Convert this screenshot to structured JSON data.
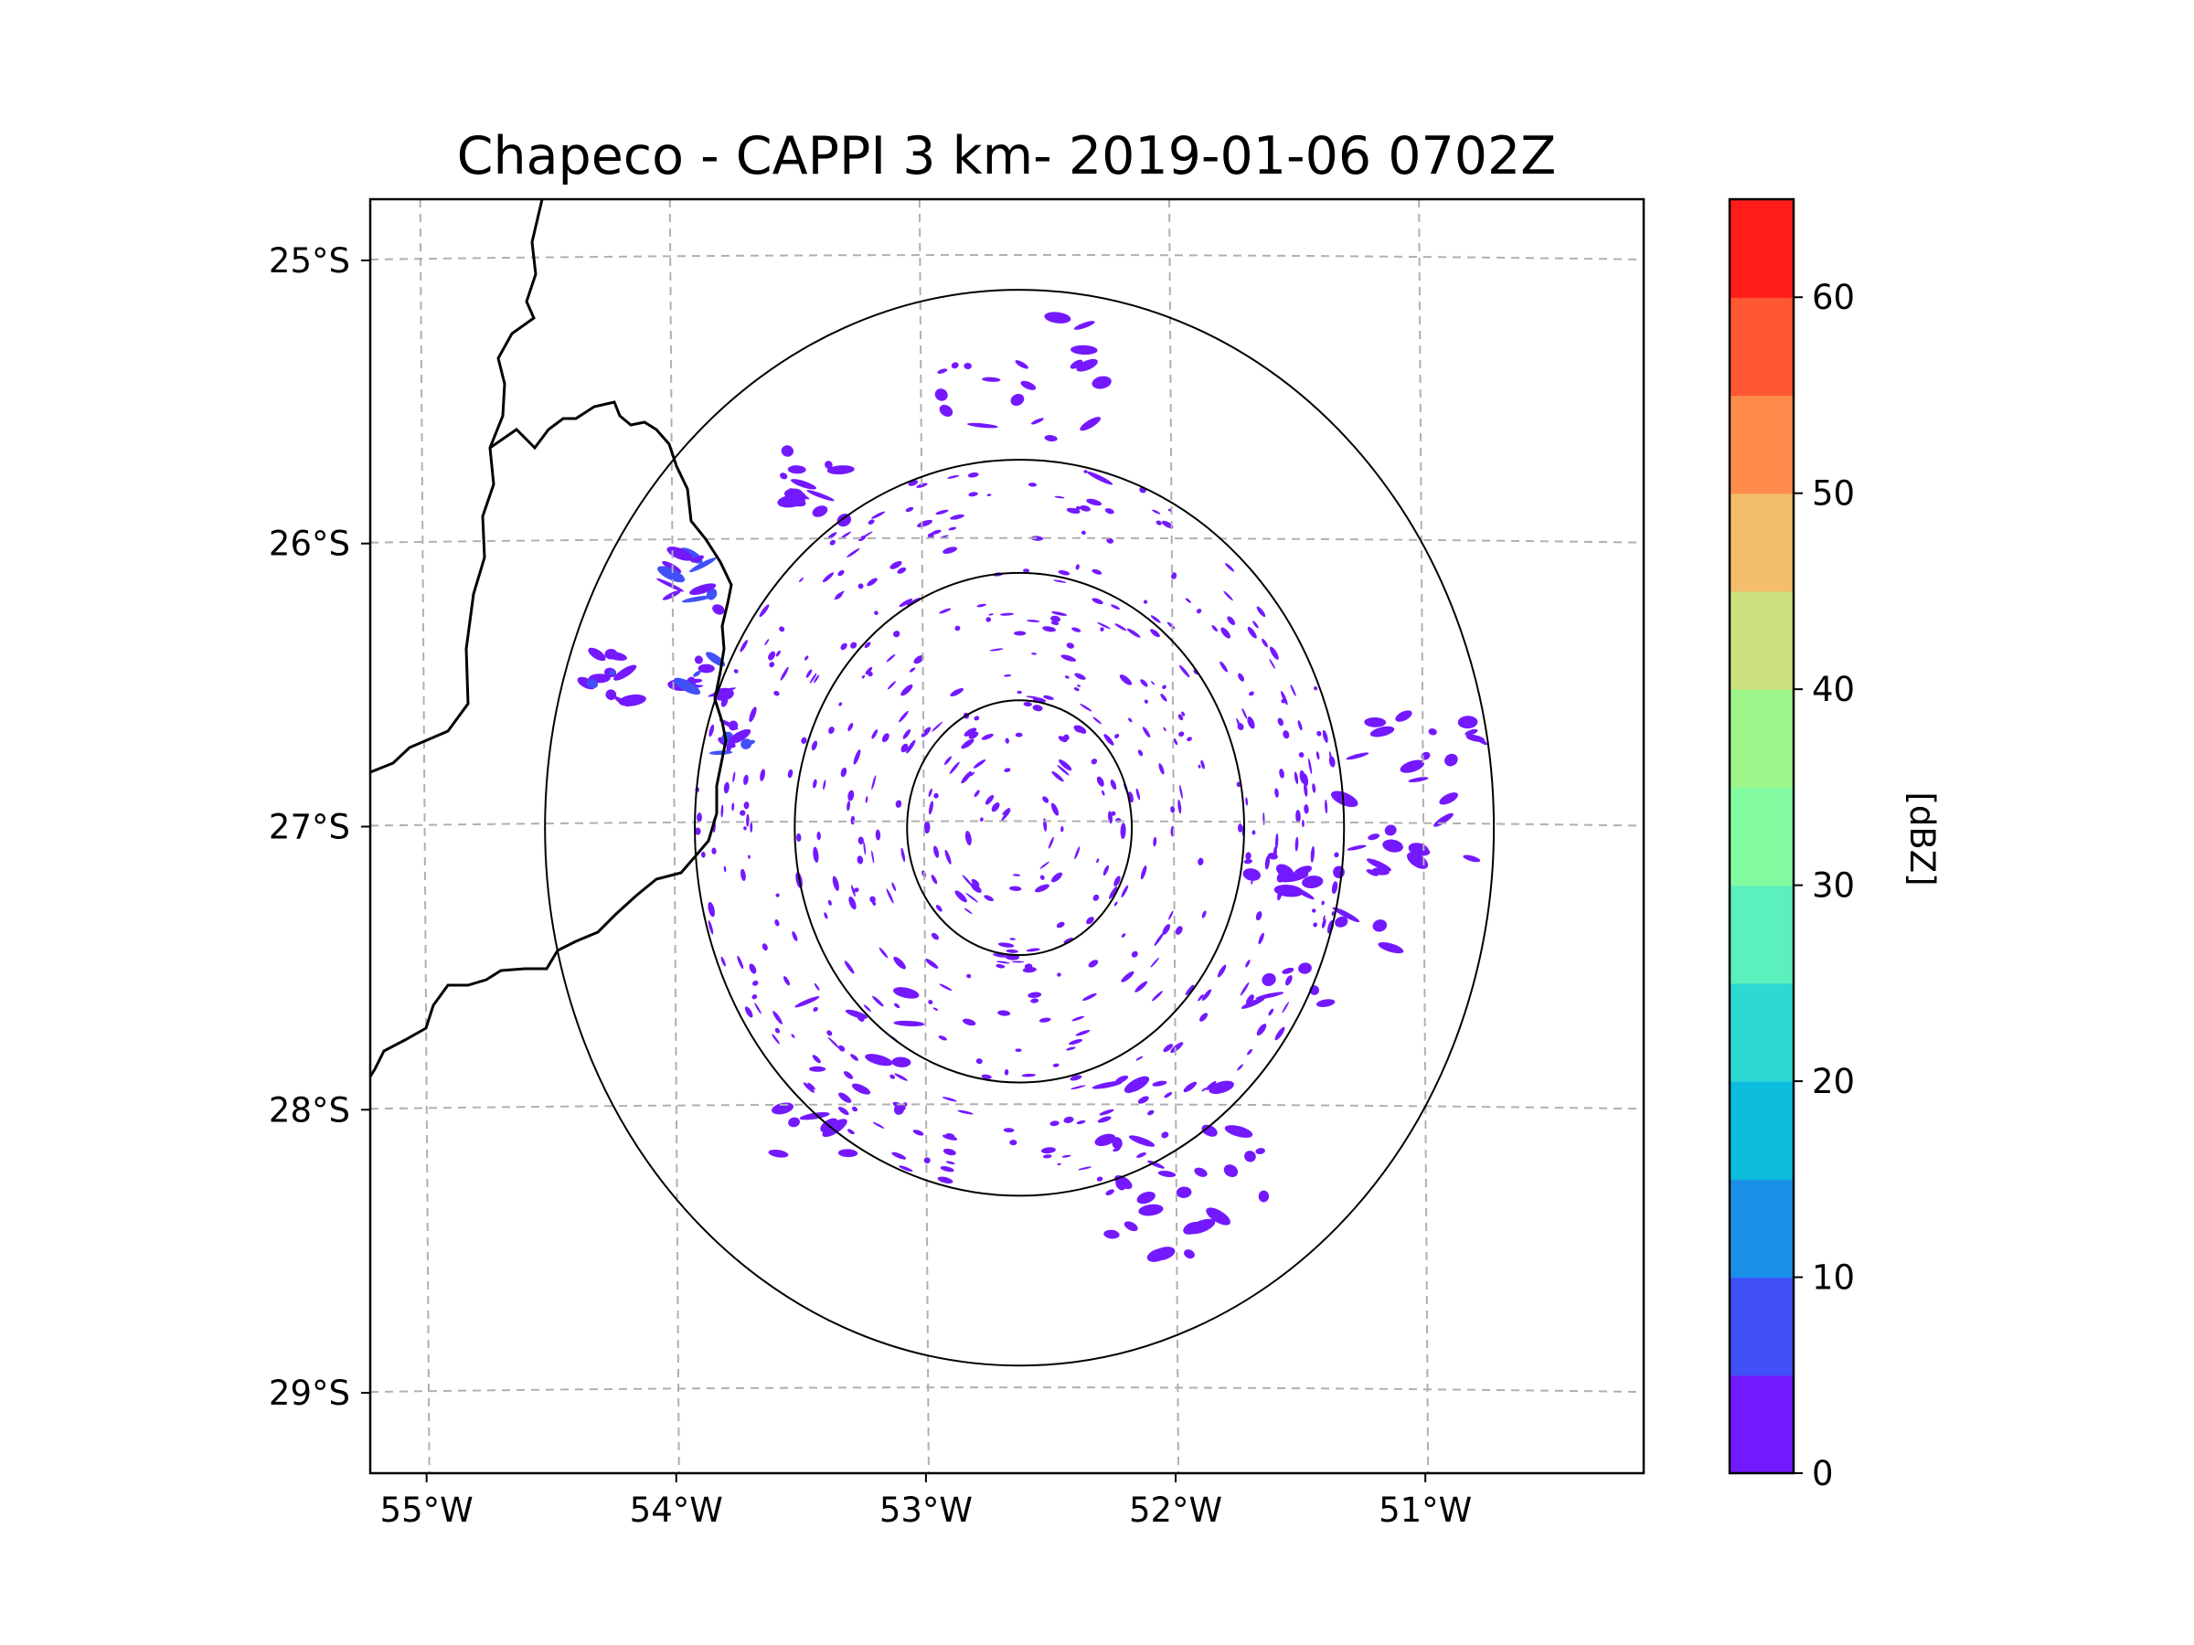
{
  "chart_data": {
    "type": "heatmap",
    "title": "Chapeco - CAPPI 3 km- 2019-01-06 0702Z",
    "map": {
      "lon_range": [
        -55.2,
        -50.1
      ],
      "lat_range": [
        -29.3,
        -24.8
      ],
      "lon_ticks": [
        -55,
        -54,
        -53,
        -52,
        -51
      ],
      "lon_tick_labels": [
        "55°W",
        "54°W",
        "53°W",
        "52°W",
        "51°W"
      ],
      "lat_ticks": [
        -25,
        -26,
        -27,
        -28,
        -29
      ],
      "lat_tick_labels": [
        "25°S",
        "26°S",
        "27°S",
        "28°S",
        "29°S"
      ],
      "gridlines": "dashed grey"
    },
    "radar": {
      "center_lon": -52.6,
      "center_lat": -27.02,
      "range_rings_deg": [
        0.45,
        0.9,
        1.3,
        1.9
      ]
    },
    "colorbar": {
      "label": "[dBZ]",
      "min": 0,
      "max": 65,
      "step": 5,
      "tick_values": [
        0,
        10,
        20,
        30,
        40,
        50,
        60
      ],
      "tick_labels": [
        "0",
        "10",
        "20",
        "30",
        "40",
        "50",
        "60"
      ],
      "colors": [
        "#7419fe",
        "#4051f8",
        "#1a90e8",
        "#0cbddd",
        "#2ed9d3",
        "#5cf0bc",
        "#83fca1",
        "#9ef58a",
        "#cde080",
        "#f3bd6c",
        "#ff8b4d",
        "#ff5732",
        "#ff1d1a"
      ]
    },
    "echo_clusters": [
      {
        "lon": -53.45,
        "lat": -25.8,
        "dbz": 5,
        "n": 14,
        "spread": 0.15
      },
      {
        "lon": -53.9,
        "lat": -26.15,
        "dbz": 6,
        "n": 12,
        "spread": 0.1
      },
      {
        "lon": -54.25,
        "lat": -26.5,
        "dbz": 7,
        "n": 12,
        "spread": 0.1
      },
      {
        "lon": -53.88,
        "lat": -26.5,
        "dbz": 8,
        "n": 12,
        "spread": 0.1
      },
      {
        "lon": -53.75,
        "lat": -26.7,
        "dbz": 10,
        "n": 8,
        "spread": 0.08
      },
      {
        "lon": -51.4,
        "lat": -27.35,
        "dbz": 4,
        "n": 26,
        "spread": 0.3
      },
      {
        "lon": -51.95,
        "lat": -28.2,
        "dbz": 4,
        "n": 30,
        "spread": 0.35
      },
      {
        "lon": -51.05,
        "lat": -26.9,
        "dbz": 4,
        "n": 24,
        "spread": 0.3
      },
      {
        "lon": -52.6,
        "lat": -25.55,
        "dbz": 3,
        "n": 20,
        "spread": 0.35
      },
      {
        "lon": -53.3,
        "lat": -27.9,
        "dbz": 3,
        "n": 16,
        "spread": 0.3
      }
    ]
  }
}
